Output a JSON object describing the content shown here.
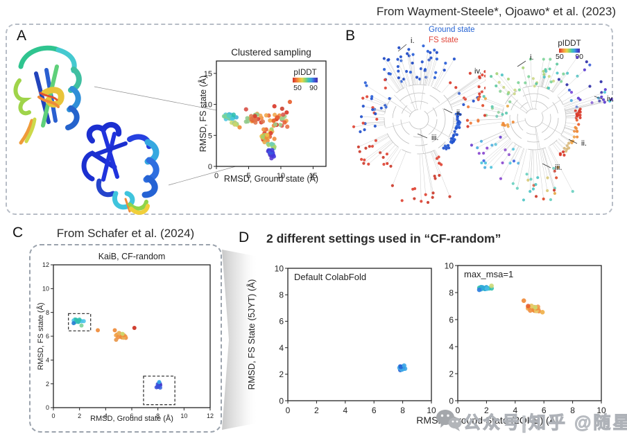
{
  "citation_top": "From Wayment-Steele*, Ojoawo* et al. (2023)",
  "piddt_colors": [
    "#cf3124",
    "#ef6a3a",
    "#f3a93f",
    "#e8d44a",
    "#8fd46a",
    "#3fc4b4",
    "#3f9fe0",
    "#3b55d6",
    "#482ba8"
  ],
  "panels": {
    "A": {
      "label": "A"
    },
    "B": {
      "label": "B",
      "legend": {
        "ground": {
          "label": "Ground state",
          "color": "#2563d4"
        },
        "fs": {
          "label": "FS state",
          "color": "#e04438"
        }
      },
      "colorbar": {
        "title": "pIDDT",
        "min": "50",
        "max": "90"
      }
    },
    "C": {
      "label": "C",
      "header": "From Schafer et al. (2024)"
    },
    "D": {
      "label": "D",
      "header": "2 different settings used in “CF-random”",
      "shared_xlabel": "RMSD, Ground State (2QKE) (Å)"
    }
  },
  "watermark": {
    "icon": "wechat-icon",
    "text": "公众号|知乎 @随星"
  },
  "chart_data": [
    {
      "type": "scatter",
      "mount": "plotA",
      "size": [
        205,
        212
      ],
      "margin": {
        "l": 27,
        "t": 33,
        "r": 20,
        "b": 27
      },
      "title": "Clustered sampling",
      "xlabel": "RMSD, Ground state (Å)",
      "ylabel": "RMSD, FS state (Å)",
      "xlim": [
        0,
        17
      ],
      "ylim": [
        0,
        17
      ],
      "ticks": [
        0,
        5,
        10,
        15
      ],
      "tick_font": 11,
      "label_font": 12.5,
      "title_font": 13.5,
      "dot": 3.1,
      "legend": {
        "title": "pIDDT",
        "min": "50",
        "max": "90"
      },
      "clusters": [
        {
          "cx": 2.3,
          "cy": 7.85,
          "rx": 1.25,
          "ry": 0.7,
          "n": 24,
          "pal": [
            "#2fbfae",
            "#4cc6e0",
            "#7fd49a",
            "#3fb0d8",
            "#56cfc0"
          ]
        },
        {
          "cx": 2.9,
          "cy": 7.0,
          "rx": 0.8,
          "ry": 0.45,
          "n": 8,
          "pal": [
            "#d4c47a",
            "#c9d96a",
            "#9fd08a"
          ]
        },
        {
          "cx": 5.9,
          "cy": 7.7,
          "rx": 1.7,
          "ry": 1.0,
          "n": 26,
          "pal": [
            "#d93a2a",
            "#e8602f",
            "#ef8b3a",
            "#f0a54a",
            "#8fc98a",
            "#e0744a"
          ]
        },
        {
          "cx": 9.2,
          "cy": 7.5,
          "rx": 1.8,
          "ry": 1.2,
          "n": 26,
          "pal": [
            "#d93a2a",
            "#e8602f",
            "#ef8b3a",
            "#f0a54a",
            "#d9544a",
            "#9fd08a"
          ]
        },
        {
          "cx": 7.9,
          "cy": 5.0,
          "rx": 1.2,
          "ry": 1.4,
          "n": 30,
          "pal": [
            "#ef8b3a",
            "#e8602f",
            "#d93a2a",
            "#9fd06a",
            "#f0c04a",
            "#e8a84a"
          ]
        },
        {
          "cx": 8.7,
          "cy": 3.3,
          "rx": 0.75,
          "ry": 0.5,
          "n": 9,
          "pal": [
            "#49bcd8",
            "#6fd0b0",
            "#a8d46a"
          ]
        },
        {
          "cx": 8.45,
          "cy": 2.0,
          "rx": 0.5,
          "ry": 0.75,
          "n": 22,
          "pal": [
            "#4a2fd0",
            "#4338dc",
            "#5b3bd0",
            "#3a55e0",
            "#3f2fb8"
          ]
        }
      ],
      "points": [
        {
          "x": 9.0,
          "y": 9.7,
          "c": "#d93a2a"
        },
        {
          "x": 10.2,
          "y": 9.3,
          "c": "#cc4433"
        },
        {
          "x": 11.4,
          "y": 10.4,
          "c": "#e8602f"
        },
        {
          "x": 10.9,
          "y": 8.7,
          "c": "#d93a2a"
        },
        {
          "x": 4.6,
          "y": 9.2,
          "c": "#d9544a"
        },
        {
          "x": 11.0,
          "y": 6.4,
          "c": "#e8744a"
        },
        {
          "x": 3.6,
          "y": 6.3,
          "c": "#ef8b3a"
        }
      ]
    },
    {
      "type": "scatter",
      "mount": "plotC",
      "size": [
        262,
        252
      ],
      "margin": {
        "l": 27,
        "t": 22,
        "r": 9,
        "b": 24
      },
      "title": "KaiB, CF-random",
      "xlabel": "RMSD, Ground state (Å)",
      "ylabel": "RMSD, FS state (Å)",
      "xlim": [
        0,
        12
      ],
      "ylim": [
        0,
        12
      ],
      "ticks": [
        0,
        2,
        4,
        6,
        8,
        10,
        12
      ],
      "tick_font": 9,
      "label_font": 11,
      "title_font": 12.5,
      "dot": 3.0,
      "boxes": [
        {
          "x0": 1.15,
          "y0": 6.45,
          "x1": 2.85,
          "y1": 7.9
        },
        {
          "x0": 6.9,
          "y0": 0.25,
          "x1": 9.3,
          "y1": 2.65
        }
      ],
      "clusters": [
        {
          "cx": 2.0,
          "cy": 7.25,
          "rx": 0.5,
          "ry": 0.22,
          "n": 13,
          "pal": [
            "#35b8d8",
            "#2fbfae",
            "#4ac4e8",
            "#45b0d0"
          ]
        },
        {
          "cx": 5.3,
          "cy": 6.1,
          "rx": 0.65,
          "ry": 0.35,
          "n": 15,
          "pal": [
            "#f0a54a",
            "#ef8b3a",
            "#e8b05a",
            "#f0994a"
          ]
        },
        {
          "cx": 8.05,
          "cy": 1.85,
          "rx": 0.2,
          "ry": 0.28,
          "n": 12,
          "pal": [
            "#3c66e0",
            "#4433cc",
            "#3a4fd8"
          ]
        }
      ],
      "points": [
        {
          "x": 1.55,
          "y": 7.1,
          "c": "#2a7fd4"
        },
        {
          "x": 2.15,
          "y": 6.9,
          "c": "#7fd49a"
        },
        {
          "x": 3.4,
          "y": 6.5,
          "c": "#ef8b3a"
        },
        {
          "x": 4.7,
          "y": 6.5,
          "c": "#ef8b3a"
        },
        {
          "x": 4.8,
          "y": 5.7,
          "c": "#e8974a"
        },
        {
          "x": 5.3,
          "y": 6.2,
          "c": "#cdd96e"
        },
        {
          "x": 6.2,
          "y": 6.7,
          "c": "#cc2f1f"
        },
        {
          "x": 8.1,
          "y": 2.15,
          "c": "#35a8e8"
        }
      ]
    },
    {
      "type": "scatter",
      "mount": "plotD1",
      "size": [
        290,
        232
      ],
      "margin": {
        "l": 60,
        "t": 19,
        "r": 23,
        "b": 22
      },
      "title": "",
      "inner_label": "Default ColabFold",
      "xlabel": "",
      "ylabel": "RMSD, FS State (5JYT) (Å)",
      "xlim": [
        0,
        10
      ],
      "ylim": [
        0,
        10
      ],
      "ticks": [
        0,
        2,
        4,
        6,
        8,
        10
      ],
      "tick_font": 12,
      "label_font": 13,
      "title_font": 12,
      "dot": 3.3,
      "inner_font": 13,
      "clusters": [
        {
          "cx": 8.0,
          "cy": 2.4,
          "rx": 0.25,
          "ry": 0.25,
          "n": 12,
          "pal": [
            "#2f7fe0",
            "#2563d4",
            "#3fa9e8",
            "#2a55cc"
          ]
        }
      ],
      "points": [
        {
          "x": 8.1,
          "y": 2.65,
          "c": "#3fa9e8"
        }
      ]
    },
    {
      "type": "scatter",
      "mount": "plotD2",
      "size": [
        260,
        234
      ],
      "margin": {
        "l": 30,
        "t": 17,
        "r": 23,
        "b": 22
      },
      "title": "",
      "inner_label": "max_msa=1",
      "xlabel": "",
      "ylabel": "",
      "xlim": [
        0,
        10
      ],
      "ylim": [
        0,
        10
      ],
      "ticks": [
        0,
        2,
        4,
        6,
        8,
        10
      ],
      "tick_font": 12,
      "label_font": 13,
      "title_font": 12,
      "dot": 3.3,
      "inner_font": 13,
      "clusters": [
        {
          "cx": 2.0,
          "cy": 8.3,
          "rx": 0.55,
          "ry": 0.14,
          "n": 14,
          "pal": [
            "#35b0e0",
            "#2fa8d8",
            "#2fbfae",
            "#45bce8"
          ]
        },
        {
          "cx": 5.4,
          "cy": 6.85,
          "rx": 0.65,
          "ry": 0.33,
          "n": 16,
          "pal": [
            "#f0a54a",
            "#ef8b3a",
            "#e8c86a",
            "#f0994a"
          ]
        }
      ],
      "points": [
        {
          "x": 1.5,
          "y": 8.2,
          "c": "#2f7fe0"
        },
        {
          "x": 2.35,
          "y": 8.5,
          "c": "#cdd97a"
        },
        {
          "x": 4.6,
          "y": 7.4,
          "c": "#ef8b3a"
        },
        {
          "x": 4.9,
          "y": 7.0,
          "c": "#e8602f"
        },
        {
          "x": 5.4,
          "y": 6.9,
          "c": "#cdd96e"
        },
        {
          "x": 5.9,
          "y": 6.55,
          "c": "#f0b04a"
        }
      ]
    },
    {
      "type": "radial-tree",
      "mount": "treeLeft",
      "size": [
        212,
        256
      ],
      "center": [
        116,
        120
      ],
      "rings": [
        14,
        26,
        38,
        50
      ],
      "colored_by": "state",
      "segments": [
        {
          "a": [
            -128,
            -52
          ],
          "r": [
            58,
            108
          ],
          "n": 42,
          "pal": [
            "#2150cc",
            "#2a60d8",
            "#1b46c4"
          ]
        },
        {
          "a": [
            -170,
            -128
          ],
          "r": [
            50,
            95
          ],
          "n": 11,
          "pal": [
            "#2150cc",
            "#2a60d8"
          ]
        },
        {
          "a": [
            -160,
            -130
          ],
          "r": [
            60,
            90
          ],
          "n": 4,
          "pal": [
            "#e04434"
          ]
        },
        {
          "a": [
            165,
            196
          ],
          "r": [
            55,
            95
          ],
          "n": 12,
          "pal": [
            "#e04434",
            "#2150cc"
          ]
        },
        {
          "a": [
            120,
            160
          ],
          "r": [
            65,
            105
          ],
          "n": 16,
          "pal": [
            "#e04434",
            "#d93a2a",
            "#cc3a2a"
          ]
        },
        {
          "a": [
            68,
            112
          ],
          "r": [
            85,
            122
          ],
          "n": 14,
          "pal": [
            "#e04434",
            "#cc3a2a"
          ]
        },
        {
          "a": [
            -50,
            -18
          ],
          "r": [
            62,
            100
          ],
          "n": 14,
          "pal": [
            "#e04434",
            "#2150cc",
            "#d93a2a"
          ]
        },
        {
          "a": [
            -36,
            -24
          ],
          "r": [
            104,
            118
          ],
          "n": 8,
          "pal": [
            "#e04434",
            "#d93a2a"
          ]
        },
        {
          "a": [
            -12,
            52
          ],
          "r": [
            54,
            60
          ],
          "n": 40,
          "pal": [
            "#2150cc",
            "#2a60d8"
          ]
        },
        {
          "a": [
            52,
            66
          ],
          "r": [
            58,
            76
          ],
          "n": 5,
          "pal": [
            "#e04434"
          ]
        }
      ],
      "labels": [
        {
          "t": "i.",
          "x": 104,
          "y": 10,
          "l": [
            98,
            12,
            86,
            22
          ]
        },
        {
          "t": "ii.",
          "x": 170,
          "y": 114,
          "l": [
            164,
            111,
            152,
            105
          ]
        },
        {
          "t": "iii.",
          "x": 134,
          "y": 150,
          "l": [
            128,
            147,
            114,
            141
          ]
        },
        {
          "t": "iv.",
          "x": 196,
          "y": 54
        }
      ]
    },
    {
      "type": "radial-tree",
      "mount": "treeRight",
      "size": [
        250,
        248
      ],
      "center": [
        122,
        108
      ],
      "rings": [
        13,
        24,
        35,
        46
      ],
      "colored_by": "pIDDT",
      "segments": [
        {
          "a": [
            -140,
            -42
          ],
          "r": [
            42,
            88
          ],
          "n": 40,
          "pal": [
            "#5fc9a0",
            "#7fd49a",
            "#cdd98a",
            "#4fc4c4",
            "#a8d47a"
          ]
        },
        {
          "a": [
            -180,
            -140
          ],
          "r": [
            40,
            80
          ],
          "n": 12,
          "pal": [
            "#8fd49a",
            "#e8a84a",
            "#5ec9b0"
          ]
        },
        {
          "a": [
            172,
            200
          ],
          "r": [
            70,
            100
          ],
          "n": 9,
          "pal": [
            "#e04a2a",
            "#ef7b3a",
            "#d93a2a"
          ]
        },
        {
          "a": [
            158,
            180
          ],
          "r": [
            28,
            48
          ],
          "n": 7,
          "pal": [
            "#ef8b3a",
            "#f0a54a"
          ]
        },
        {
          "a": [
            108,
            158
          ],
          "r": [
            50,
            105
          ],
          "n": 22,
          "pal": [
            "#4fc4dd",
            "#6a3fd0",
            "#3f66e0",
            "#8a4ad0",
            "#4fb0e0"
          ]
        },
        {
          "a": [
            62,
            108
          ],
          "r": [
            78,
            122
          ],
          "n": 24,
          "pal": [
            "#e04a2a",
            "#d9c97a",
            "#4fc4c4",
            "#e8a84a",
            "#6ad0c0",
            "#cc3a2a"
          ]
        },
        {
          "a": [
            -58,
            -14
          ],
          "r": [
            55,
            112
          ],
          "n": 20,
          "pal": [
            "#5a3bd0",
            "#3f5fd8",
            "#7a4ad8",
            "#4fb0e0",
            "#2f2fa8"
          ]
        },
        {
          "a": [
            -12,
            48
          ],
          "r": [
            60,
            68
          ],
          "n": 32,
          "ordered": true,
          "pal": [
            "#d93a2a",
            "#e8602f",
            "#ef8b3a",
            "#f0a54a",
            "#d9b97a"
          ]
        },
        {
          "a": [
            48,
            58
          ],
          "r": [
            62,
            72
          ],
          "n": 4,
          "pal": [
            "#d93a2a"
          ]
        },
        {
          "a": [
            -22,
            -12
          ],
          "r": [
            100,
            118
          ],
          "n": 6,
          "pal": [
            "#4fc4dd",
            "#5a3bd0"
          ]
        }
      ],
      "labels": [
        {
          "t": "i.",
          "x": 116,
          "y": 24,
          "l": [
            110,
            26,
            98,
            34
          ]
        },
        {
          "t": "iv.",
          "x": 227,
          "y": 84,
          "l": [
            221,
            81,
            209,
            77
          ]
        },
        {
          "t": "ii.",
          "x": 190,
          "y": 148,
          "l": [
            184,
            145,
            172,
            139
          ]
        },
        {
          "t": "iii.",
          "x": 152,
          "y": 183,
          "l": [
            146,
            180,
            134,
            174
          ]
        }
      ]
    }
  ]
}
